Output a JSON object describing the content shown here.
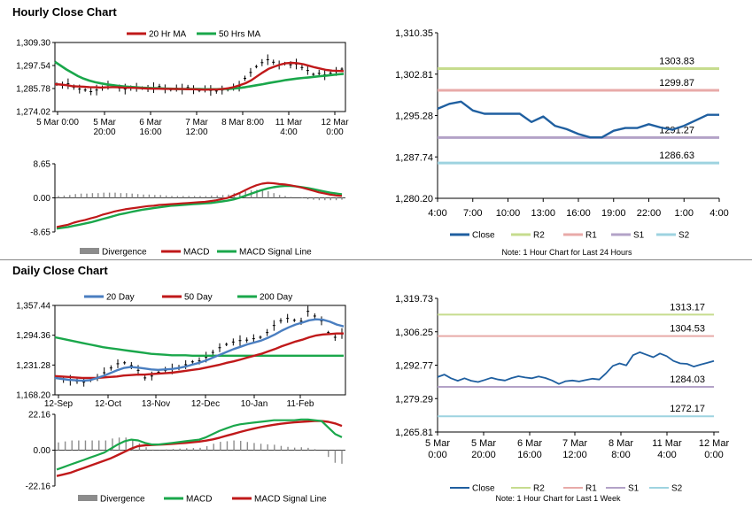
{
  "titles": {
    "hourly": "Hourly Close Chart",
    "daily": "Daily Close Chart"
  },
  "colors": {
    "red": "#c0191a",
    "green": "#1aa74b",
    "blue": "#4a7ec0",
    "close": "#1f5fa0",
    "r2": "#c6dc8e",
    "r1": "#e8aaa8",
    "s1": "#b3a2c7",
    "s2": "#9ed3e0",
    "hist": "#8c8c8c",
    "candle": "#000000"
  },
  "chart_data": [
    {
      "id": "hourly_price",
      "type": "line",
      "legend": [
        {
          "key": "ma20",
          "label": "20 Hr MA"
        },
        {
          "key": "ma50",
          "label": "50 Hrs MA"
        }
      ],
      "y_ticks": [
        "1,309.30",
        "1,297.54",
        "1,285.78",
        "1,274.02"
      ],
      "ylim": [
        1274.02,
        1309.3
      ],
      "x_ticks": [
        [
          "5 Mar 0:00"
        ],
        [
          "5 Mar",
          "20:00"
        ],
        [
          "6 Mar",
          "16:00"
        ],
        [
          "7 Mar",
          "12:00"
        ],
        [
          "8 Mar 8:00"
        ],
        [
          "11 Mar",
          "4:00"
        ],
        [
          "12 Mar",
          "0:00"
        ]
      ],
      "price": [
        1288,
        1287.5,
        1288.2,
        1286.5,
        1285.5,
        1285,
        1284.2,
        1285,
        1286,
        1287.5,
        1287,
        1286,
        1285.5,
        1286,
        1286.4,
        1286,
        1285.8,
        1286.2,
        1286.8,
        1285.6,
        1285.2,
        1286,
        1285.5,
        1286.3,
        1285.2,
        1284.8,
        1285.6,
        1284.8,
        1284.5,
        1285,
        1285.2,
        1286.5,
        1287,
        1291,
        1294,
        1297,
        1299,
        1300.5,
        1299.2,
        1297.8,
        1298.5,
        1297.9,
        1298.3,
        1296.5,
        1295,
        1293,
        1293.5,
        1292.8,
        1293.6,
        1294.5,
        1295.7
      ],
      "ma20": [
        1288,
        1287.8,
        1287.5,
        1287,
        1286.8,
        1286.7,
        1286.5,
        1286.4,
        1286.3,
        1286.4,
        1286.5,
        1286.4,
        1286.2,
        1286.2,
        1286.1,
        1285.9,
        1285.8,
        1285.7,
        1285.7,
        1285.6,
        1285.6,
        1285.5,
        1285.5,
        1285.4,
        1285.4,
        1285.3,
        1285.2,
        1285.3,
        1285.3,
        1285.5,
        1285.9,
        1286.5,
        1287.5,
        1288.5,
        1290,
        1292,
        1294,
        1295.8,
        1297,
        1298,
        1298.7,
        1298.9,
        1298.7,
        1298.2,
        1297.4,
        1296.6,
        1295.9,
        1295.3,
        1294.9,
        1294.8,
        1294.7
      ],
      "ma50": [
        1299.4,
        1297.5,
        1295.5,
        1293.8,
        1292.1,
        1290.8,
        1289.8,
        1289,
        1288.4,
        1287.9,
        1287.5,
        1287.1,
        1286.8,
        1286.6,
        1286.4,
        1286.2,
        1286.1,
        1286,
        1285.9,
        1285.8,
        1285.7,
        1285.6,
        1285.5,
        1285.5,
        1285.5,
        1285.5,
        1285.4,
        1285.4,
        1285.4,
        1285.5,
        1285.6,
        1285.8,
        1286.1,
        1286.5,
        1287,
        1287.5,
        1288,
        1288.6,
        1289.1,
        1289.6,
        1290.1,
        1290.5,
        1290.9,
        1291.2,
        1291.5,
        1291.8,
        1292.1,
        1292.4,
        1292.7,
        1293,
        1293.3
      ]
    },
    {
      "id": "hourly_macd",
      "type": "line",
      "legend": [
        {
          "key": "divergence",
          "label": "Divergence"
        },
        {
          "key": "macd",
          "label": "MACD"
        },
        {
          "key": "signal",
          "label": "MACD Signal Line"
        }
      ],
      "y_ticks": [
        "8.65",
        "0.00",
        "-8.65"
      ],
      "ylim": [
        -8.65,
        8.65
      ],
      "macd": [
        -7.4,
        -7.1,
        -6.8,
        -6.3,
        -5.9,
        -5.6,
        -5.2,
        -4.8,
        -4.3,
        -3.9,
        -3.5,
        -3.2,
        -2.9,
        -2.7,
        -2.5,
        -2.3,
        -2.1,
        -2,
        -1.8,
        -1.7,
        -1.6,
        -1.5,
        -1.4,
        -1.3,
        -1.2,
        -1.1,
        -1,
        -0.8,
        -0.6,
        -0.3,
        0,
        0.6,
        1.2,
        1.9,
        2.6,
        3.2,
        3.6,
        3.8,
        3.7,
        3.5,
        3.4,
        3.2,
        2.9,
        2.6,
        2.2,
        1.8,
        1.4,
        1.1,
        0.8,
        0.6,
        0.5
      ],
      "signal": [
        -7.8,
        -7.6,
        -7.4,
        -7.1,
        -6.8,
        -6.5,
        -6.2,
        -5.8,
        -5.4,
        -5,
        -4.6,
        -4.2,
        -3.9,
        -3.6,
        -3.3,
        -3,
        -2.8,
        -2.6,
        -2.4,
        -2.2,
        -2,
        -1.9,
        -1.8,
        -1.7,
        -1.6,
        -1.5,
        -1.4,
        -1.3,
        -1.1,
        -0.9,
        -0.7,
        -0.4,
        0,
        0.5,
        1,
        1.5,
        2,
        2.4,
        2.7,
        2.9,
        3,
        3,
        2.9,
        2.7,
        2.5,
        2.2,
        1.9,
        1.6,
        1.3,
        1.1,
        0.9
      ]
    },
    {
      "id": "hourly_levels",
      "type": "line",
      "y_ticks": [
        "1,310.35",
        "1,302.81",
        "1,295.28",
        "1,287.74",
        "1,280.20"
      ],
      "ylim": [
        1280.2,
        1310.35
      ],
      "x_ticks": [
        "4:00",
        "7:00",
        "10:00",
        "13:00",
        "16:00",
        "19:00",
        "22:00",
        "1:00",
        "4:00"
      ],
      "close": [
        1296.5,
        1297.4,
        1297.8,
        1296.2,
        1295.6,
        1295.6,
        1295.6,
        1295.6,
        1294.1,
        1295.1,
        1293.4,
        1292.8,
        1291.9,
        1291.3,
        1291.3,
        1292.5,
        1293,
        1293,
        1293.7,
        1293.1,
        1292.7,
        1293.4,
        1294.4,
        1295.4,
        1295.4
      ],
      "levels": [
        {
          "key": "r2",
          "label": "R2",
          "value": 1303.83,
          "text": "1303.83"
        },
        {
          "key": "r1",
          "label": "R1",
          "value": 1299.87,
          "text": "1299.87"
        },
        {
          "key": "s1",
          "label": "S1",
          "value": 1291.27,
          "text": "1291.27"
        },
        {
          "key": "s2",
          "label": "S2",
          "value": 1286.63,
          "text": "1286.63"
        }
      ],
      "legend_close": "Close",
      "note": "Note: 1 Hour Chart for Last 24 Hours"
    },
    {
      "id": "daily_price",
      "type": "line",
      "legend": [
        {
          "key": "d20",
          "label": "20 Day"
        },
        {
          "key": "d50",
          "label": "50 Day"
        },
        {
          "key": "d200",
          "label": "200 Day"
        }
      ],
      "y_ticks": [
        "1,357.44",
        "1,294.36",
        "1,231.28",
        "1,168.20"
      ],
      "ylim": [
        1168.2,
        1357.44
      ],
      "x_ticks": [
        "12-Sep",
        "12-Oct",
        "13-Nov",
        "12-Dec",
        "10-Jan",
        "11-Feb"
      ],
      "price": [
        1205,
        1201,
        1199,
        1197,
        1195,
        1199,
        1205,
        1215,
        1225,
        1234,
        1236,
        1230,
        1220,
        1204,
        1208,
        1216,
        1220,
        1223,
        1226,
        1232,
        1238,
        1240,
        1248,
        1258,
        1268,
        1275,
        1280,
        1283,
        1284,
        1287,
        1290,
        1300,
        1315,
        1325,
        1330,
        1326,
        1324,
        1345,
        1335,
        1325,
        1300,
        1290,
        1298
      ],
      "d20": [
        1204,
        1202,
        1200,
        1199,
        1198,
        1199,
        1203,
        1208,
        1214,
        1220,
        1225,
        1227,
        1226,
        1224,
        1222,
        1221,
        1222,
        1223,
        1225,
        1228,
        1232,
        1236,
        1241,
        1247,
        1253,
        1259,
        1265,
        1270,
        1275,
        1279,
        1283,
        1289,
        1296,
        1304,
        1311,
        1317,
        1321,
        1326,
        1328,
        1327,
        1323,
        1317,
        1313
      ],
      "d50": [
        1208,
        1207,
        1206,
        1205,
        1204,
        1204,
        1204,
        1205,
        1206,
        1207,
        1209,
        1210,
        1211,
        1211,
        1212,
        1213,
        1214,
        1215,
        1217,
        1219,
        1221,
        1223,
        1226,
        1229,
        1232,
        1236,
        1239,
        1243,
        1247,
        1251,
        1255,
        1260,
        1265,
        1271,
        1276,
        1281,
        1285,
        1290,
        1294,
        1296,
        1297,
        1298,
        1298
      ],
      "d200": [
        1290,
        1287,
        1284,
        1281,
        1278,
        1275,
        1272,
        1269,
        1267,
        1265,
        1263,
        1261,
        1259,
        1257,
        1255,
        1254,
        1253,
        1252,
        1252,
        1252,
        1251,
        1251,
        1251,
        1251,
        1251,
        1251,
        1251,
        1251,
        1251,
        1251,
        1251,
        1251,
        1251,
        1251,
        1251,
        1251,
        1251,
        1251,
        1251,
        1251,
        1251,
        1251,
        1251
      ]
    },
    {
      "id": "daily_macd",
      "type": "line",
      "legend": [
        {
          "key": "divergence",
          "label": "Divergence"
        },
        {
          "key": "macd",
          "label": "MACD"
        },
        {
          "key": "signal",
          "label": "MACD Signal Line"
        }
      ],
      "y_ticks": [
        "22.16",
        "0.00",
        "-22.16"
      ],
      "ylim": [
        -22.16,
        22.16
      ],
      "macd": [
        -12,
        -10.5,
        -9,
        -7.5,
        -6,
        -4.5,
        -3,
        -1.5,
        1,
        3.5,
        5.5,
        6.5,
        6,
        4.5,
        3.5,
        3.5,
        4,
        4.5,
        5,
        5.5,
        6,
        6.5,
        8,
        10,
        12,
        13.5,
        15,
        16,
        16.5,
        17,
        17.5,
        18,
        18.5,
        18.5,
        18.5,
        18.5,
        19,
        19,
        18.5,
        18,
        14,
        10,
        8
      ],
      "signal": [
        -16,
        -15,
        -14,
        -12.5,
        -11,
        -9.5,
        -8,
        -6.5,
        -5,
        -3,
        -1,
        1,
        2.5,
        3,
        3.2,
        3.4,
        3.6,
        3.9,
        4.2,
        4.5,
        4.9,
        5.3,
        5.9,
        6.7,
        7.7,
        8.9,
        10,
        11.2,
        12.3,
        13.3,
        14.2,
        15,
        15.7,
        16.3,
        16.8,
        17.2,
        17.5,
        17.8,
        18,
        18,
        17.5,
        16.5,
        15
      ]
    },
    {
      "id": "daily_levels",
      "type": "line",
      "y_ticks": [
        "1,319.73",
        "1,306.25",
        "1,292.77",
        "1,279.29",
        "1,265.81"
      ],
      "ylim": [
        1265.81,
        1319.73
      ],
      "x_ticks": [
        [
          "5 Mar",
          "0:00"
        ],
        [
          "5 Mar",
          "20:00"
        ],
        [
          "6 Mar",
          "16:00"
        ],
        [
          "7 Mar",
          "12:00"
        ],
        [
          "8 Mar",
          "8:00"
        ],
        [
          "11 Mar",
          "4:00"
        ],
        [
          "12 Mar",
          "0:00"
        ]
      ],
      "close": [
        1288,
        1289,
        1287.5,
        1286.5,
        1287.5,
        1286.5,
        1286,
        1286.8,
        1287.7,
        1287,
        1286.6,
        1287.6,
        1288.3,
        1287.8,
        1287.5,
        1288.2,
        1287.6,
        1286.6,
        1285.2,
        1286.3,
        1286.6,
        1286.2,
        1286.8,
        1287.3,
        1287,
        1289.5,
        1292.5,
        1293.5,
        1292.7,
        1296.8,
        1298,
        1297,
        1296,
        1297.5,
        1296.4,
        1294.5,
        1293.5,
        1293.3,
        1292.2,
        1293,
        1293.7,
        1294.5
      ],
      "levels": [
        {
          "key": "r2",
          "label": "R2",
          "value": 1313.17,
          "text": "1313.17"
        },
        {
          "key": "r1",
          "label": "R1",
          "value": 1304.53,
          "text": "1304.53"
        },
        {
          "key": "s1",
          "label": "S1",
          "value": 1284.03,
          "text": "1284.03"
        },
        {
          "key": "s2",
          "label": "S2",
          "value": 1272.17,
          "text": "1272.17"
        }
      ],
      "legend_close": "Close",
      "note": "Note: 1 Hour Chart for Last 1 Week"
    }
  ]
}
